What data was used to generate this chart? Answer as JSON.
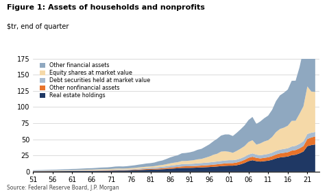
{
  "title": "Figure 1: Assets of households and nonprofits",
  "subtitle": "$tr, end of quarter",
  "source": "Source: Federal Reserve Board, J.P. Morgan",
  "ylim": [
    0,
    175
  ],
  "yticks": [
    0,
    25,
    50,
    75,
    100,
    125,
    150,
    175
  ],
  "series": [
    {
      "label": "Real estate holdings",
      "color": "#1f3864"
    },
    {
      "label": "Other nonfinancial assets",
      "color": "#e8732a"
    },
    {
      "label": "Debt securities held at market value",
      "color": "#a8bbd0"
    },
    {
      "label": "Equity shares at market value",
      "color": "#f5d9a8"
    },
    {
      "label": "Other financial assets",
      "color": "#8fa8c0"
    }
  ],
  "years": [
    1951,
    1952,
    1953,
    1954,
    1955,
    1956,
    1957,
    1958,
    1959,
    1960,
    1961,
    1962,
    1963,
    1964,
    1965,
    1966,
    1967,
    1968,
    1969,
    1970,
    1971,
    1972,
    1973,
    1974,
    1975,
    1976,
    1977,
    1978,
    1979,
    1980,
    1981,
    1982,
    1983,
    1984,
    1985,
    1986,
    1987,
    1988,
    1989,
    1990,
    1991,
    1992,
    1993,
    1994,
    1995,
    1996,
    1997,
    1998,
    1999,
    2000,
    2001,
    2002,
    2003,
    2004,
    2005,
    2006,
    2007,
    2008,
    2009,
    2010,
    2011,
    2012,
    2013,
    2014,
    2015,
    2016,
    2017,
    2018,
    2019,
    2020,
    2021,
    2022,
    2023
  ],
  "real_estate": [
    0.5,
    0.55,
    0.57,
    0.6,
    0.64,
    0.67,
    0.7,
    0.73,
    0.77,
    0.8,
    0.84,
    0.87,
    0.91,
    0.96,
    1.01,
    1.05,
    1.1,
    1.18,
    1.25,
    1.28,
    1.38,
    1.52,
    1.63,
    1.62,
    1.7,
    1.85,
    2.06,
    2.34,
    2.62,
    2.82,
    2.95,
    3.1,
    3.38,
    3.67,
    3.97,
    4.38,
    4.8,
    5.22,
    5.66,
    5.79,
    5.8,
    5.94,
    6.22,
    6.5,
    6.78,
    7.07,
    7.49,
    7.91,
    8.47,
    8.9,
    9.18,
    9.17,
    9.89,
    11.3,
    13.4,
    16.2,
    17.6,
    16.2,
    15.5,
    16.2,
    16.9,
    18.3,
    20.5,
    21.9,
    22.6,
    23.3,
    25.4,
    26.1,
    28.2,
    31.1,
    39.4,
    41.0,
    42.0
  ],
  "other_nonfinancial": [
    0.2,
    0.21,
    0.22,
    0.23,
    0.24,
    0.25,
    0.26,
    0.27,
    0.28,
    0.29,
    0.3,
    0.31,
    0.33,
    0.35,
    0.37,
    0.38,
    0.4,
    0.43,
    0.46,
    0.48,
    0.51,
    0.56,
    0.61,
    0.63,
    0.66,
    0.73,
    0.82,
    0.93,
    1.07,
    1.19,
    1.27,
    1.33,
    1.41,
    1.52,
    1.65,
    1.78,
    1.95,
    2.15,
    2.38,
    2.46,
    2.5,
    2.57,
    2.68,
    2.8,
    2.91,
    3.04,
    3.22,
    3.4,
    3.56,
    3.73,
    3.9,
    3.97,
    4.24,
    4.57,
    4.91,
    5.25,
    5.43,
    5.09,
    4.91,
    5.08,
    5.25,
    5.59,
    5.94,
    6.28,
    6.47,
    6.65,
    7.03,
    7.28,
    7.8,
    8.51,
    11.1,
    11.8,
    12.5
  ],
  "debt_securities": [
    0.2,
    0.23,
    0.25,
    0.27,
    0.29,
    0.31,
    0.34,
    0.38,
    0.42,
    0.44,
    0.48,
    0.52,
    0.56,
    0.6,
    0.63,
    0.67,
    0.71,
    0.77,
    0.83,
    0.87,
    0.92,
    1.0,
    1.06,
    1.06,
    1.1,
    1.15,
    1.21,
    1.29,
    1.38,
    1.54,
    1.73,
    1.92,
    2.12,
    2.31,
    2.6,
    2.88,
    3.08,
    3.27,
    3.46,
    3.56,
    3.66,
    3.75,
    3.85,
    3.95,
    4.04,
    4.14,
    4.24,
    4.33,
    4.42,
    4.52,
    4.62,
    4.52,
    4.43,
    4.62,
    4.81,
    5.0,
    5.19,
    5.0,
    4.81,
    5.0,
    5.19,
    5.38,
    5.58,
    5.77,
    5.96,
    6.15,
    6.35,
    6.54,
    6.92,
    7.31,
    7.69,
    7.31,
    6.73
  ],
  "equity_shares": [
    0.3,
    0.33,
    0.33,
    0.39,
    0.45,
    0.49,
    0.51,
    0.58,
    0.64,
    0.68,
    0.78,
    0.74,
    0.83,
    0.91,
    1.01,
    0.97,
    1.11,
    1.26,
    1.26,
    1.22,
    1.36,
    1.55,
    1.52,
    1.32,
    1.46,
    1.65,
    1.75,
    1.9,
    1.94,
    2.04,
    1.94,
    2.13,
    2.62,
    2.71,
    3.2,
    3.68,
    3.97,
    4.07,
    4.85,
    4.65,
    5.04,
    5.42,
    6.2,
    6.4,
    7.75,
    9.11,
    11.04,
    12.01,
    14.53,
    14.34,
    12.97,
    11.43,
    13.56,
    15.11,
    16.47,
    19.37,
    20.34,
    15.5,
    18.4,
    20.34,
    21.31,
    24.22,
    29.06,
    31.97,
    32.94,
    34.88,
    39.73,
    38.76,
    46.53,
    54.27,
    73.62,
    63.85,
    62.0
  ],
  "other_financial": [
    0.8,
    0.88,
    0.93,
    1.01,
    1.08,
    1.16,
    1.2,
    1.32,
    1.44,
    1.52,
    1.68,
    1.76,
    1.88,
    2.0,
    2.12,
    2.2,
    2.32,
    2.48,
    2.6,
    2.72,
    2.92,
    3.2,
    3.28,
    3.32,
    3.48,
    3.72,
    3.96,
    4.32,
    4.6,
    5.0,
    5.2,
    5.6,
    6.4,
    7.0,
    8.0,
    9.2,
    10.0,
    10.8,
    12.0,
    12.4,
    12.8,
    13.6,
    14.8,
    15.6,
    17.2,
    18.8,
    20.8,
    23.2,
    24.8,
    26.0,
    26.8,
    26.0,
    28.0,
    30.0,
    32.0,
    34.0,
    36.0,
    32.0,
    34.0,
    36.0,
    38.0,
    42.0,
    48.0,
    52.0,
    54.0,
    56.0,
    62.0,
    62.0,
    72.0,
    88.0,
    120.0,
    113.0,
    107.0
  ]
}
